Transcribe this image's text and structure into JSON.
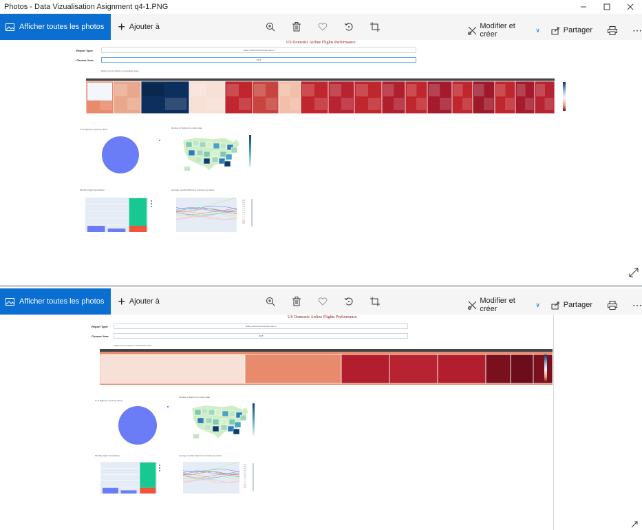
{
  "window": {
    "title": "Photos - Data Vizualisation Asignment q4-1.PNG"
  },
  "toolbar": {
    "show_all": "Afficher toutes les photos",
    "add_to": "Ajouter à",
    "edit": "Modifier et créer",
    "share": "Partager"
  },
  "dashboard": {
    "title": "US Domestic Airline Flights Performance",
    "report_type_label": "Report Type:",
    "report_type_value": "Yearly Airline Performance Report",
    "year_label": "Choose Year:",
    "year_value": "2018",
    "treemap_title": "Flight count by airline to destination state",
    "pie_title": "% of flights by reporting airline",
    "map_title": "Number of flights from origin state",
    "bar_title": "Monthly Flight Cancellation",
    "line_title": "Average monthly flight time (minutes) by airline"
  },
  "colors": {
    "accent": "#0a6fd1",
    "dark_red": "#7a0f1e",
    "red": "#c0262d",
    "salmon": "#e88a6c",
    "light": "#f7e0d6",
    "navy": "#0d2f5e",
    "pie": "#6b7cf7",
    "bar_green": "#17c990",
    "bar_red": "#ef553b"
  },
  "icons": [
    "photos-icon",
    "plus-icon",
    "zoom-in-icon",
    "trash-icon",
    "heart-icon",
    "rotate-icon",
    "crop-icon",
    "edit-create-icon",
    "chevron-down-icon",
    "share-icon",
    "print-icon",
    "more-icon",
    "expand-icon"
  ]
}
